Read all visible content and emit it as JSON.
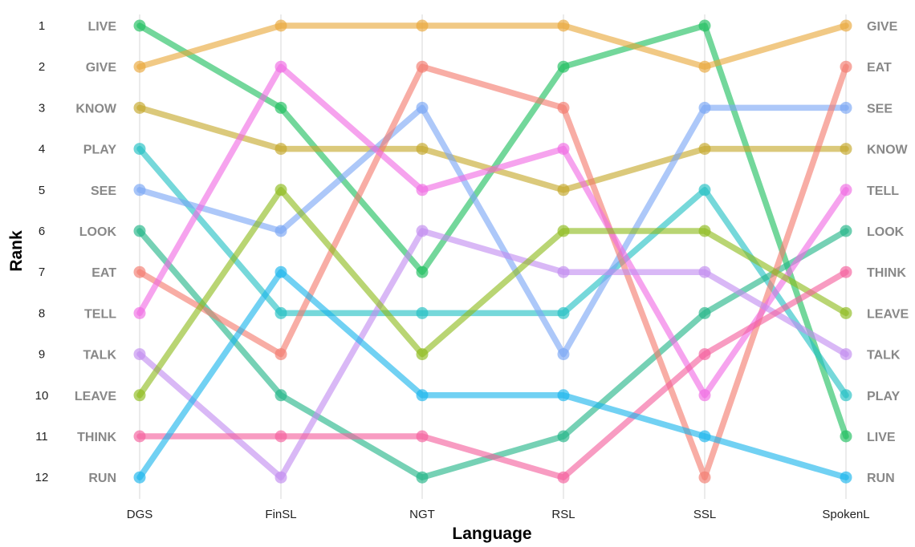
{
  "chart_data": {
    "type": "line",
    "title": "",
    "xlabel": "Language",
    "ylabel": "Rank",
    "x": [
      "DGS",
      "FinSL",
      "NGT",
      "RSL",
      "SSL",
      "SpokenL"
    ],
    "y_ticks": [
      1,
      2,
      3,
      4,
      5,
      6,
      7,
      8,
      9,
      10,
      11,
      12
    ],
    "ylim": [
      1,
      12
    ],
    "y_reversed": true,
    "grid": "vertical",
    "legend": "none",
    "series": [
      {
        "name": "LIVE",
        "color": "#1dbf5e",
        "values": [
          1,
          3,
          7,
          2,
          1,
          11
        ]
      },
      {
        "name": "GIVE",
        "color": "#e9a83a",
        "values": [
          2,
          1,
          1,
          1,
          2,
          1
        ]
      },
      {
        "name": "KNOW",
        "color": "#c5a82a",
        "values": [
          3,
          4,
          4,
          5,
          4,
          4
        ]
      },
      {
        "name": "PLAY",
        "color": "#22c0c3",
        "values": [
          4,
          8,
          8,
          8,
          5,
          10
        ]
      },
      {
        "name": "SEE",
        "color": "#7aa6f5",
        "values": [
          5,
          6,
          3,
          9,
          3,
          3
        ]
      },
      {
        "name": "LOOK",
        "color": "#22b587",
        "values": [
          6,
          10,
          12,
          11,
          8,
          6
        ]
      },
      {
        "name": "EAT",
        "color": "#f37b6e",
        "values": [
          7,
          9,
          2,
          3,
          12,
          2
        ]
      },
      {
        "name": "TELL",
        "color": "#f06be4",
        "values": [
          8,
          2,
          5,
          4,
          10,
          5
        ]
      },
      {
        "name": "TALK",
        "color": "#c18cf0",
        "values": [
          9,
          12,
          6,
          7,
          7,
          9
        ]
      },
      {
        "name": "LEAVE",
        "color": "#8ebb1d",
        "values": [
          10,
          5,
          9,
          6,
          6,
          8
        ]
      },
      {
        "name": "THINK",
        "color": "#f45f9c",
        "values": [
          11,
          11,
          11,
          12,
          9,
          7
        ]
      },
      {
        "name": "RUN",
        "color": "#1ab5ec",
        "values": [
          12,
          7,
          10,
          10,
          11,
          12
        ]
      }
    ],
    "left_labels": [
      "LIVE",
      "GIVE",
      "KNOW",
      "PLAY",
      "SEE",
      "LOOK",
      "EAT",
      "TELL",
      "TALK",
      "LEAVE",
      "THINK",
      "RUN"
    ],
    "right_labels": [
      "GIVE",
      "EAT",
      "SEE",
      "KNOW",
      "TELL",
      "LOOK",
      "THINK",
      "LEAVE",
      "TALK",
      "PLAY",
      "LIVE",
      "RUN"
    ],
    "label_color": "#888888"
  }
}
